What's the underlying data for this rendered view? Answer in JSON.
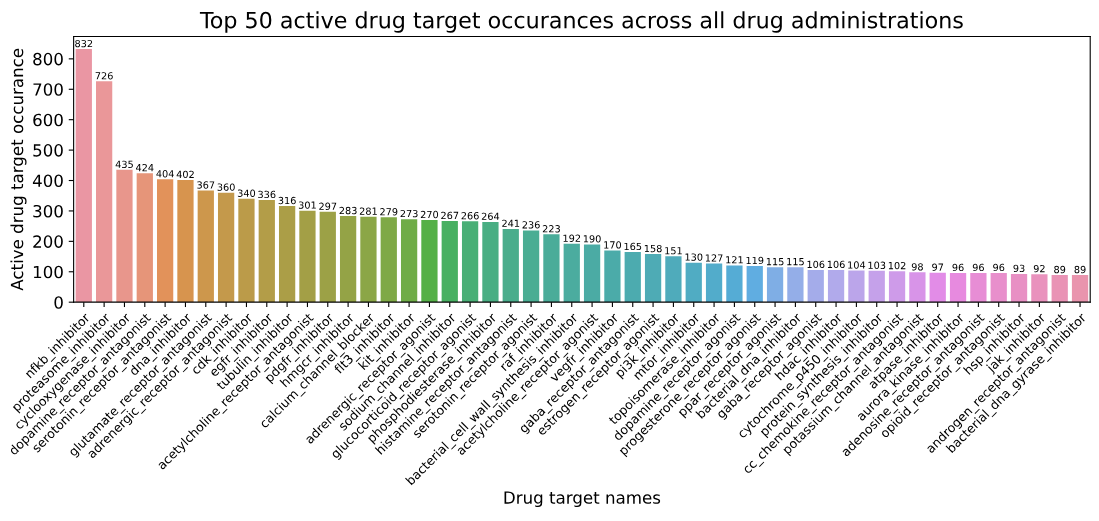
{
  "chart_data": {
    "type": "bar",
    "title": "Top 50 active drug target occurances across all drug administrations",
    "xlabel": "Drug target names",
    "ylabel": "Active drug target occurance",
    "categories": [
      "nfkb_inhibitor",
      "proteasome_inhibitor",
      "cyclooxygenase_inhibitor",
      "dopamine_receptor_antagonist",
      "serotonin_receptor_antagonist",
      "dna_inhibitor",
      "glutamate_receptor_antagonist",
      "adrenergic_receptor_antagonist",
      "cdk_inhibitor",
      "egfr_inhibitor",
      "tubulin_inhibitor",
      "acetylcholine_receptor_antagonist",
      "pdgfr_inhibitor",
      "hmgcr_inhibitor",
      "calcium_channel_blocker",
      "flt3_inhibitor",
      "kit_inhibitor",
      "adrenergic_receptor_agonist",
      "sodium_channel_inhibitor",
      "glucocorticoid_receptor_agonist",
      "phosphodiesterase_inhibitor",
      "histamine_receptor_antagonist",
      "serotonin_receptor_agonist",
      "raf_inhibitor",
      "bacterial_cell_wall_synthesis_inhibitor",
      "acetylcholine_receptor_agonist",
      "vegfr_inhibitor",
      "gaba_receptor_antagonist",
      "estrogen_receptor_agonist",
      "pi3k_inhibitor",
      "mtor_inhibitor",
      "topoisomerase_inhibitor",
      "dopamine_receptor_agonist",
      "progesterone_receptor_agonist",
      "ppar_receptor_agonist",
      "bacterial_dna_inhibitor",
      "gaba_receptor_agonist",
      "hdac_inhibitor",
      "cytochrome_p450_inhibitor",
      "protein_synthesis_inhibitor",
      "cc_chemokine_receptor_antagonist",
      "potassium_channel_antagonist",
      "atpase_inhibitor",
      "aurora_kinase_inhibitor",
      "adenosine_receptor_antagonist",
      "opioid_receptor_antagonist",
      "hsp_inhibitor",
      "jak_inhibitor",
      "androgen_receptor_antagonist",
      "bacterial_dna_gyrase_inhibitor"
    ],
    "values": [
      832,
      726,
      435,
      424,
      404,
      402,
      367,
      360,
      340,
      336,
      316,
      301,
      297,
      283,
      281,
      279,
      273,
      270,
      267,
      266,
      264,
      241,
      236,
      223,
      192,
      190,
      170,
      165,
      158,
      151,
      130,
      127,
      121,
      119,
      115,
      115,
      106,
      106,
      104,
      103,
      102,
      98,
      97,
      96,
      96,
      96,
      93,
      92,
      89,
      89
    ],
    "colors": [
      "#ea96a3",
      "#ea9799",
      "#e8968c",
      "#e69579",
      "#e2925a",
      "#d7944e",
      "#cd974c",
      "#c4994b",
      "#bb9b49",
      "#b39d48",
      "#ab9e47",
      "#a39f46",
      "#9ca146",
      "#94a346",
      "#8ba646",
      "#7fa946",
      "#6fac47",
      "#55b047",
      "#48b062",
      "#49af76",
      "#49ae83",
      "#4aad8c",
      "#4aad93",
      "#4aac99",
      "#4bac9f",
      "#4baba4",
      "#4baba9",
      "#4cabaf",
      "#4eabb5",
      "#4fabbb",
      "#50acc3",
      "#52accb",
      "#55acd5",
      "#60ade1",
      "#7faee5",
      "#94aee8",
      "#a4acea",
      "#b1aaeb",
      "#bba5ea",
      "#c5a1ea",
      "#ce9be9",
      "#d894e8",
      "#e28ce7",
      "#e78adf",
      "#e78dd5",
      "#e88fcc",
      "#e890c4",
      "#e992bd",
      "#e993b5",
      "#e994ad"
    ],
    "ylim": [
      0,
      873.6
    ],
    "yticks": [
      0,
      100,
      200,
      300,
      400,
      500,
      600,
      700,
      800
    ],
    "data_labels": true
  }
}
